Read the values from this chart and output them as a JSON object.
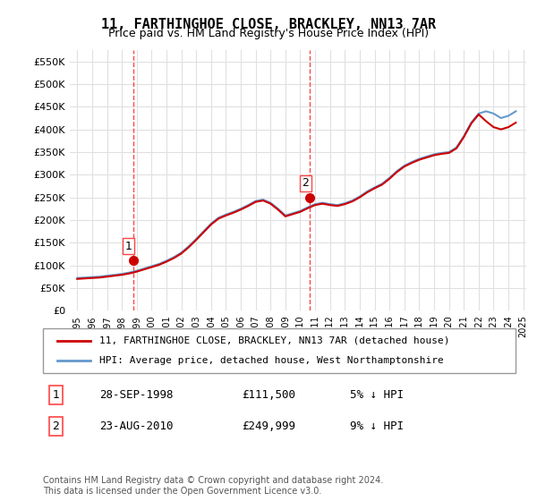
{
  "title": "11, FARTHINGHOE CLOSE, BRACKLEY, NN13 7AR",
  "subtitle": "Price paid vs. HM Land Registry's House Price Index (HPI)",
  "legend_line1": "11, FARTHINGHOE CLOSE, BRACKLEY, NN13 7AR (detached house)",
  "legend_line2": "HPI: Average price, detached house, West Northamptonshire",
  "table": [
    {
      "num": "1",
      "date": "28-SEP-1998",
      "price": "£111,500",
      "hpi": "5% ↓ HPI"
    },
    {
      "num": "2",
      "date": "23-AUG-2010",
      "price": "£249,999",
      "hpi": "9% ↓ HPI"
    }
  ],
  "footnote": "Contains HM Land Registry data © Crown copyright and database right 2024.\nThis data is licensed under the Open Government Licence v3.0.",
  "x_start_year": 1995,
  "x_end_year": 2025,
  "ylim": [
    0,
    575000
  ],
  "yticks": [
    0,
    50000,
    100000,
    150000,
    200000,
    250000,
    300000,
    350000,
    400000,
    450000,
    500000,
    550000
  ],
  "background_color": "#ffffff",
  "grid_color": "#e0e0e0",
  "sale1_year": 1998.75,
  "sale1_price": 111500,
  "sale2_year": 2010.65,
  "sale2_price": 249999,
  "marker_color": "#cc0000",
  "vline_color": "#ff4444",
  "hpi_color": "#6699cc",
  "price_color": "#cc0000",
  "hpi_data_years": [
    1995,
    1995.5,
    1996,
    1996.5,
    1997,
    1997.5,
    1998,
    1998.5,
    1999,
    1999.5,
    2000,
    2000.5,
    2001,
    2001.5,
    2002,
    2002.5,
    2003,
    2003.5,
    2004,
    2004.5,
    2005,
    2005.5,
    2006,
    2006.5,
    2007,
    2007.5,
    2008,
    2008.5,
    2009,
    2009.5,
    2010,
    2010.5,
    2011,
    2011.5,
    2012,
    2012.5,
    2013,
    2013.5,
    2014,
    2014.5,
    2015,
    2015.5,
    2016,
    2016.5,
    2017,
    2017.5,
    2018,
    2018.5,
    2019,
    2019.5,
    2020,
    2020.5,
    2021,
    2021.5,
    2022,
    2022.5,
    2023,
    2023.5,
    2024,
    2024.5
  ],
  "hpi_values": [
    72000,
    73000,
    74000,
    75000,
    77000,
    79000,
    81000,
    84000,
    88000,
    93000,
    98000,
    103000,
    110000,
    118000,
    128000,
    142000,
    158000,
    175000,
    192000,
    205000,
    212000,
    218000,
    225000,
    233000,
    242000,
    245000,
    238000,
    225000,
    210000,
    215000,
    220000,
    228000,
    235000,
    238000,
    235000,
    233000,
    237000,
    243000,
    252000,
    263000,
    272000,
    280000,
    293000,
    308000,
    320000,
    328000,
    335000,
    340000,
    345000,
    348000,
    350000,
    360000,
    385000,
    415000,
    435000,
    440000,
    435000,
    425000,
    430000,
    440000
  ],
  "price_data_years": [
    1995,
    1995.5,
    1996,
    1996.5,
    1997,
    1997.5,
    1998,
    1998.5,
    1999,
    1999.5,
    2000,
    2000.5,
    2001,
    2001.5,
    2002,
    2002.5,
    2003,
    2003.5,
    2004,
    2004.5,
    2005,
    2005.5,
    2006,
    2006.5,
    2007,
    2007.5,
    2008,
    2008.5,
    2009,
    2009.5,
    2010,
    2010.5,
    2011,
    2011.5,
    2012,
    2012.5,
    2013,
    2013.5,
    2014,
    2014.5,
    2015,
    2015.5,
    2016,
    2016.5,
    2017,
    2017.5,
    2018,
    2018.5,
    2019,
    2019.5,
    2020,
    2020.5,
    2021,
    2021.5,
    2022,
    2022.5,
    2023,
    2023.5,
    2024,
    2024.5
  ],
  "price_values": [
    70000,
    71000,
    72000,
    73000,
    75000,
    77000,
    79000,
    82000,
    86000,
    91000,
    96000,
    101000,
    108000,
    116000,
    126000,
    140000,
    156000,
    173000,
    190000,
    203000,
    210000,
    216000,
    223000,
    231000,
    240000,
    243000,
    236000,
    223000,
    208000,
    213000,
    218000,
    226000,
    233000,
    236000,
    233000,
    231000,
    235000,
    241000,
    250000,
    261000,
    270000,
    278000,
    291000,
    306000,
    318000,
    326000,
    333000,
    338000,
    343000,
    346000,
    348000,
    358000,
    383000,
    413000,
    433000,
    418000,
    405000,
    400000,
    405000,
    415000
  ]
}
